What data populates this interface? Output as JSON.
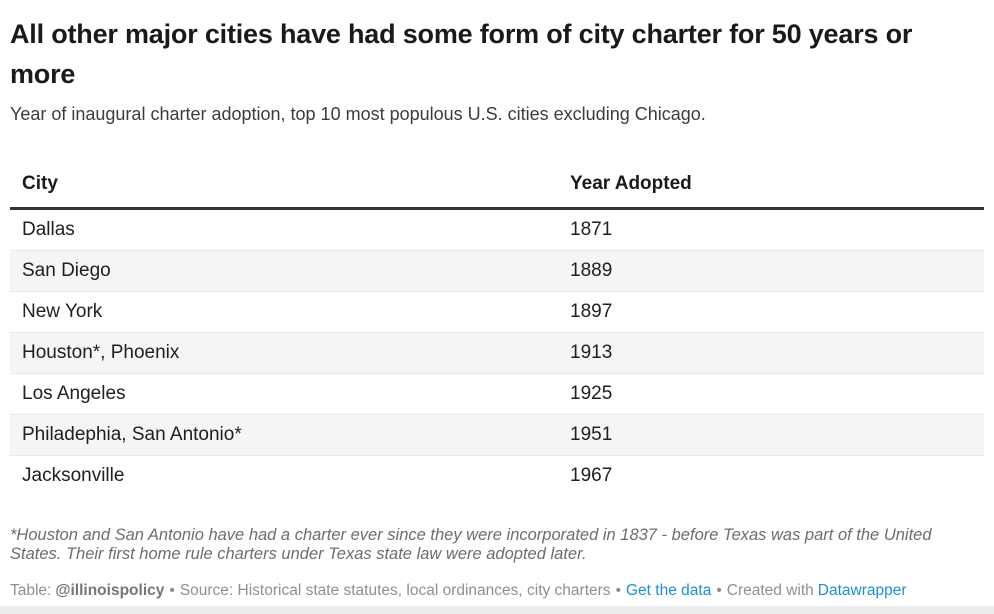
{
  "chart_data": {
    "type": "table",
    "title": "All other major cities have had some form of city charter for 50 years or more",
    "subtitle": "Year of inaugural charter adoption, top 10 most populous U.S. cities excluding Chicago.",
    "columns": [
      "City",
      "Year Adopted"
    ],
    "rows": [
      {
        "city": "Dallas",
        "year": "1871"
      },
      {
        "city": "San Diego",
        "year": "1889"
      },
      {
        "city": "New York",
        "year": "1897"
      },
      {
        "city": "Houston*, Phoenix",
        "year": "1913"
      },
      {
        "city": "Los Angeles",
        "year": "1925"
      },
      {
        "city": "Philadephia, San Antonio*",
        "year": "1951"
      },
      {
        "city": "Jacksonville",
        "year": "1967"
      }
    ],
    "footnote": "*Houston and San Antonio have had a charter ever since they were incorporated in 1837 - before Texas was part of the United States. Their first home rule charters under Texas state law were adopted later.",
    "layout": {
      "alternating_rows": true,
      "header_rule": true
    }
  },
  "footer": {
    "table_label": "Table:",
    "handle": "@illinoispolicy",
    "bullet": "•",
    "source": "Source: Historical state statutes, local ordinances, city charters",
    "get_data_label": "Get the data",
    "created_with": "Created with",
    "datawrapper_label": "Datawrapper"
  },
  "colors": {
    "link_blue": "#1e8fd4",
    "header_rule": "#333333",
    "alt_row_bg": "#f5f5f5",
    "row_separator": "#e8e8e8",
    "title_text": "#1a1a1a",
    "footnote_gray": "#6d6d6d",
    "footer_gray": "#8f8f8f"
  }
}
